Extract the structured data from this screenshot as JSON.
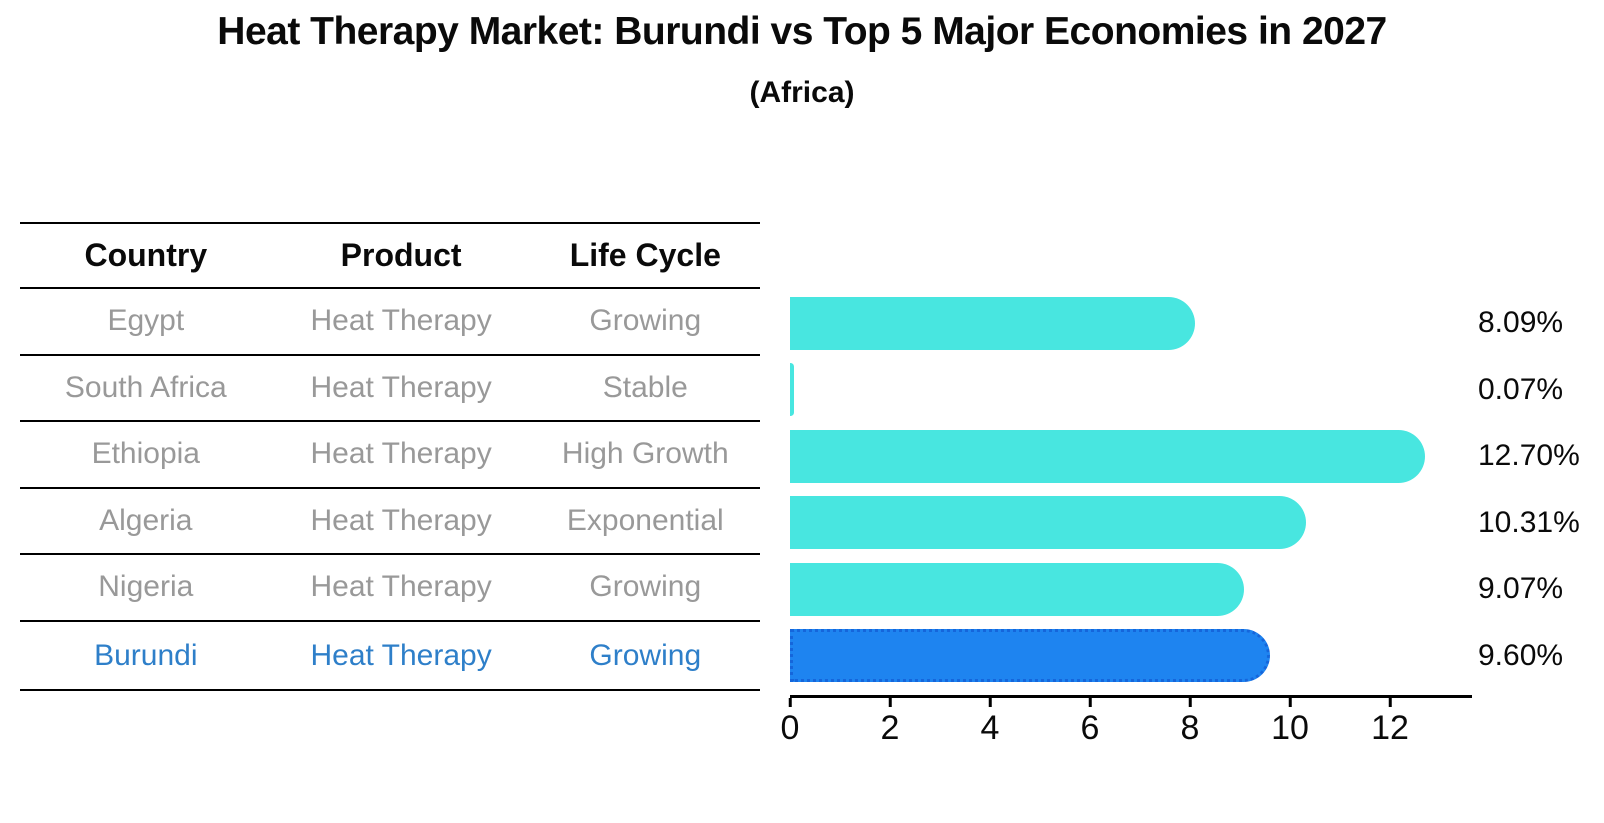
{
  "title": "Heat Therapy Market: Burundi vs Top 5 Major Economies in 2027",
  "subtitle": "(Africa)",
  "table": {
    "columns": [
      "Country",
      "Product",
      "Life Cycle"
    ],
    "rows": [
      {
        "country": "Egypt",
        "product": "Heat Therapy",
        "life_cycle": "Growing",
        "highlight": false
      },
      {
        "country": "South Africa",
        "product": "Heat Therapy",
        "life_cycle": "Stable",
        "highlight": false
      },
      {
        "country": "Ethiopia",
        "product": "Heat Therapy",
        "life_cycle": "High Growth",
        "highlight": false
      },
      {
        "country": "Algeria",
        "product": "Heat Therapy",
        "life_cycle": "Exponential",
        "highlight": false
      },
      {
        "country": "Nigeria",
        "product": "Heat Therapy",
        "life_cycle": "Growing",
        "highlight": true
      }
    ],
    "highlight_row": {
      "country": "Burundi",
      "product": "Heat Therapy",
      "life_cycle": "Growing"
    }
  },
  "chart_data": {
    "type": "bar",
    "orientation": "horizontal",
    "categories": [
      "Egypt",
      "South Africa",
      "Ethiopia",
      "Algeria",
      "Nigeria",
      "Burundi"
    ],
    "values": [
      8.09,
      0.07,
      12.7,
      10.31,
      9.07,
      9.6
    ],
    "value_labels": [
      "8.09%",
      "0.07%",
      "12.70%",
      "10.31%",
      "9.07%",
      "9.60%"
    ],
    "title": "Heat Therapy Market: Burundi vs Top 5 Major Economies in 2027 (Africa)",
    "xlabel": "",
    "ylabel": "",
    "xlim": [
      0,
      13.64
    ],
    "xticks": [
      0,
      2,
      4,
      6,
      8,
      10,
      12
    ],
    "grid": false,
    "legend": "none",
    "bar_color": "#48E6E0",
    "highlight_bar_color": "#1E84F0",
    "highlight_border_color": "#1566DB",
    "highlight_index": 5,
    "highlight_text_color": "#2E7FC9",
    "value_label_position": "right-of-plot"
  }
}
